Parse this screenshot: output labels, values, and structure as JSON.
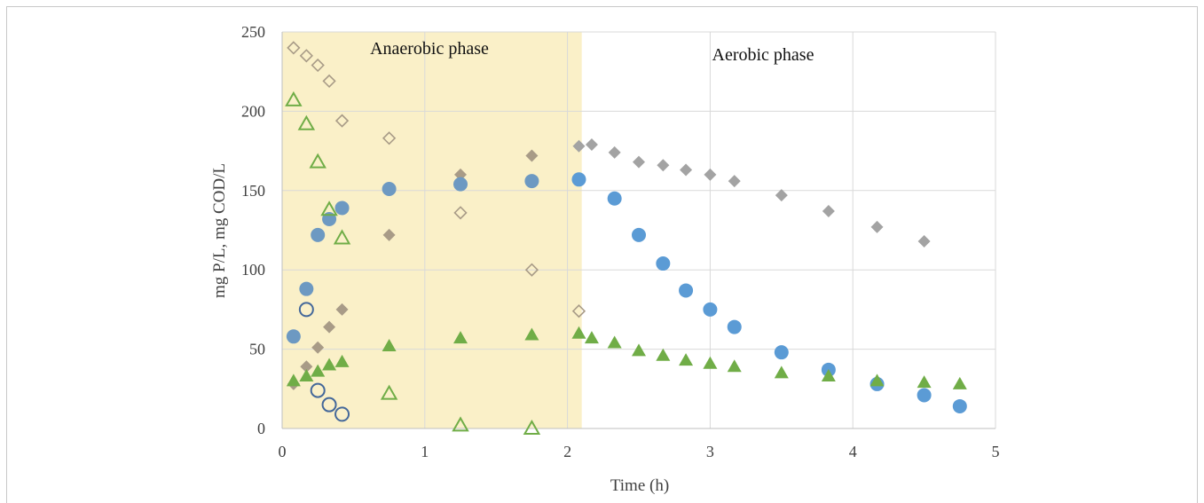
{
  "chart_data": {
    "type": "scatter",
    "title": "",
    "xlabel": "Time (h)",
    "ylabel": "mg P/L, mg COD/L",
    "xlim": [
      0,
      5
    ],
    "ylim": [
      0,
      250
    ],
    "xticks": [
      0,
      1,
      2,
      3,
      4,
      5
    ],
    "yticks": [
      0,
      50,
      100,
      150,
      200,
      250
    ],
    "grid": true,
    "shaded_region": {
      "x_from": 0,
      "x_to": 2.1,
      "color": "#faf0c8",
      "label": "Anaerobic phase"
    },
    "annotations": [
      "Anaerobic phase",
      "Aerobic phase"
    ],
    "colors": {
      "gray": "#a3a3a3",
      "tan": "#a89b87",
      "blue": "#5b9bd5",
      "steel": "#6d99c2",
      "navy": "#44689a",
      "green": "#70ad47"
    },
    "series": [
      {
        "marker": "diamond-open",
        "color": "#a89b87",
        "x": [
          0.08,
          0.17,
          0.25,
          0.33,
          0.42,
          0.75,
          1.25,
          1.75,
          2.08
        ],
        "y": [
          240,
          235,
          229,
          219,
          194,
          183,
          136,
          100,
          74
        ]
      },
      {
        "marker": "diamond",
        "color": "#a89b87",
        "x": [
          0.08,
          0.17,
          0.25,
          0.33,
          0.42,
          0.75,
          1.25,
          1.75
        ],
        "y": [
          28,
          39,
          51,
          64,
          75,
          122,
          160,
          172
        ]
      },
      {
        "marker": "diamond",
        "color": "#a3a3a3",
        "x": [
          2.08,
          2.17,
          2.33,
          2.5,
          2.67,
          2.83,
          3.0,
          3.17,
          3.5,
          3.83,
          4.17,
          4.5
        ],
        "y": [
          178,
          179,
          174,
          168,
          166,
          163,
          160,
          156,
          147,
          137,
          127,
          118
        ]
      },
      {
        "marker": "circle",
        "color": "#6d99c2",
        "x": [
          0.08,
          0.17,
          0.25,
          0.33,
          0.42,
          0.75,
          1.25,
          1.75
        ],
        "y": [
          58,
          88,
          122,
          132,
          139,
          151,
          154,
          156
        ]
      },
      {
        "marker": "circle",
        "color": "#5b9bd5",
        "x": [
          2.08,
          2.33,
          2.5,
          2.67,
          2.83,
          3.0,
          3.17,
          3.5,
          3.83,
          4.17,
          4.5,
          4.75
        ],
        "y": [
          157,
          145,
          122,
          104,
          87,
          75,
          64,
          48,
          37,
          28,
          21,
          14
        ]
      },
      {
        "marker": "circle-open",
        "color": "#44689a",
        "x": [
          0.17,
          0.25,
          0.33,
          0.42
        ],
        "y": [
          75,
          24,
          15,
          9
        ]
      },
      {
        "marker": "triangle-open",
        "color": "#70ad47",
        "x": [
          0.08,
          0.17,
          0.25,
          0.33,
          0.42,
          0.75,
          1.25,
          1.75
        ],
        "y": [
          207,
          192,
          168,
          138,
          120,
          22,
          2,
          0
        ]
      },
      {
        "marker": "triangle",
        "color": "#70ad47",
        "x": [
          0.08,
          0.17,
          0.25,
          0.33,
          0.42,
          0.75,
          1.25,
          1.75,
          2.08,
          2.17,
          2.33,
          2.5,
          2.67,
          2.83,
          3.0,
          3.17,
          3.5,
          3.83,
          4.17,
          4.5,
          4.75
        ],
        "y": [
          30,
          33,
          36,
          40,
          42,
          52,
          57,
          59,
          60,
          57,
          54,
          49,
          46,
          43,
          41,
          39,
          35,
          33,
          30,
          29,
          28
        ]
      }
    ]
  }
}
